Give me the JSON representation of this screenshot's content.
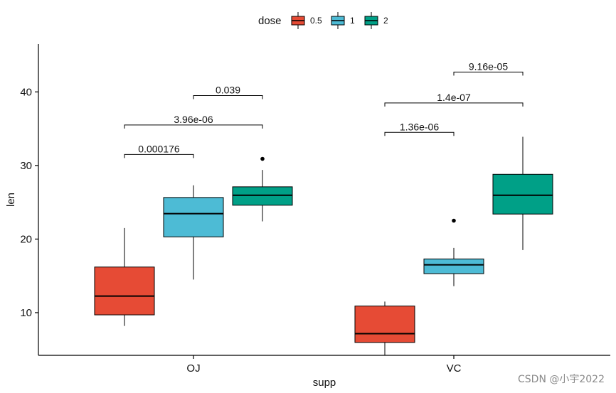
{
  "chart_data": {
    "type": "boxplot",
    "xlabel": "supp",
    "ylabel": "len",
    "ylim": [
      4.2,
      46.5
    ],
    "yticks": [
      10,
      20,
      30,
      40
    ],
    "categories": [
      "OJ",
      "VC"
    ],
    "legend": {
      "title": "dose",
      "position": "top",
      "entries": [
        {
          "label": "0.5",
          "color": "#E64B35"
        },
        {
          "label": "1",
          "color": "#4DBBD5"
        },
        {
          "label": "2",
          "color": "#00A087"
        }
      ]
    },
    "series": [
      {
        "name": "0.5",
        "color": "#E64B35",
        "boxes": [
          {
            "category": "OJ",
            "min": 8.2,
            "q1": 9.7,
            "median": 12.25,
            "q3": 16.2,
            "max": 21.5,
            "outliers": []
          },
          {
            "category": "VC",
            "min": 4.2,
            "q1": 5.95,
            "median": 7.15,
            "q3": 10.9,
            "max": 11.5,
            "outliers": []
          }
        ]
      },
      {
        "name": "1",
        "color": "#4DBBD5",
        "boxes": [
          {
            "category": "OJ",
            "min": 14.5,
            "q1": 20.3,
            "median": 23.45,
            "q3": 25.65,
            "max": 27.3,
            "outliers": []
          },
          {
            "category": "VC",
            "min": 13.6,
            "q1": 15.3,
            "median": 16.5,
            "q3": 17.3,
            "max": 18.8,
            "outliers": [
              22.5
            ]
          }
        ]
      },
      {
        "name": "2",
        "color": "#00A087",
        "boxes": [
          {
            "category": "OJ",
            "min": 22.4,
            "q1": 24.6,
            "median": 25.95,
            "q3": 27.1,
            "max": 29.4,
            "outliers": [
              30.9
            ]
          },
          {
            "category": "VC",
            "min": 18.5,
            "q1": 23.4,
            "median": 25.95,
            "q3": 28.8,
            "max": 33.9,
            "outliers": []
          }
        ]
      }
    ],
    "comparisons": [
      {
        "category": "OJ",
        "from": "0.5",
        "to": "1",
        "label": "0.000176",
        "y": 31.5
      },
      {
        "category": "OJ",
        "from": "0.5",
        "to": "2",
        "label": "3.96e-06",
        "y": 35.5
      },
      {
        "category": "OJ",
        "from": "1",
        "to": "2",
        "label": "0.039",
        "y": 39.5
      },
      {
        "category": "VC",
        "from": "0.5",
        "to": "1",
        "label": "1.36e-06",
        "y": 34.5
      },
      {
        "category": "VC",
        "from": "0.5",
        "to": "2",
        "label": "1.4e-07",
        "y": 38.5
      },
      {
        "category": "VC",
        "from": "1",
        "to": "2",
        "label": "9.16e-05",
        "y": 42.7
      }
    ]
  },
  "watermark": "CSDN @小宇2022"
}
